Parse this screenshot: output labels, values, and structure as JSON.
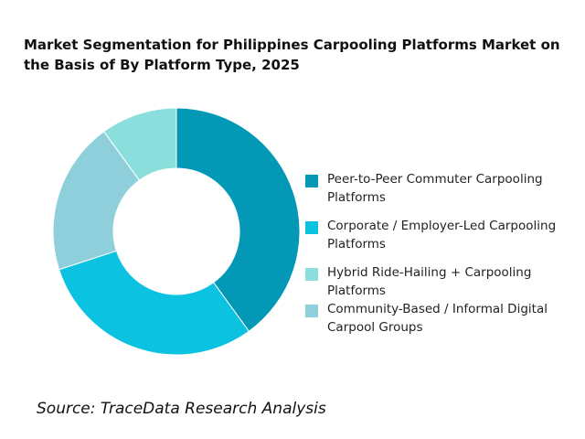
{
  "chart_data": {
    "type": "pie",
    "donut": true,
    "title": "Market Segmentation for Philippines Carpooling Platforms Market on the Basis of  By Platform Type, 2025",
    "categories": [
      "Peer-to-Peer Commuter Carpooling Platforms",
      "Corporate / Employer-Led Carpooling Platforms",
      "Hybrid Ride-Hailing + Carpooling Platforms",
      "Community-Based / Informal Digital Carpool Groups"
    ],
    "values": [
      40,
      30,
      10,
      20
    ],
    "plot_order": [
      0,
      1,
      3,
      2
    ],
    "colors": [
      "#0399b6",
      "#0cc2e1",
      "#8adedc",
      "#8ecfdb"
    ],
    "legend_position": "right",
    "source": "Source: TraceData Research Analysis"
  }
}
